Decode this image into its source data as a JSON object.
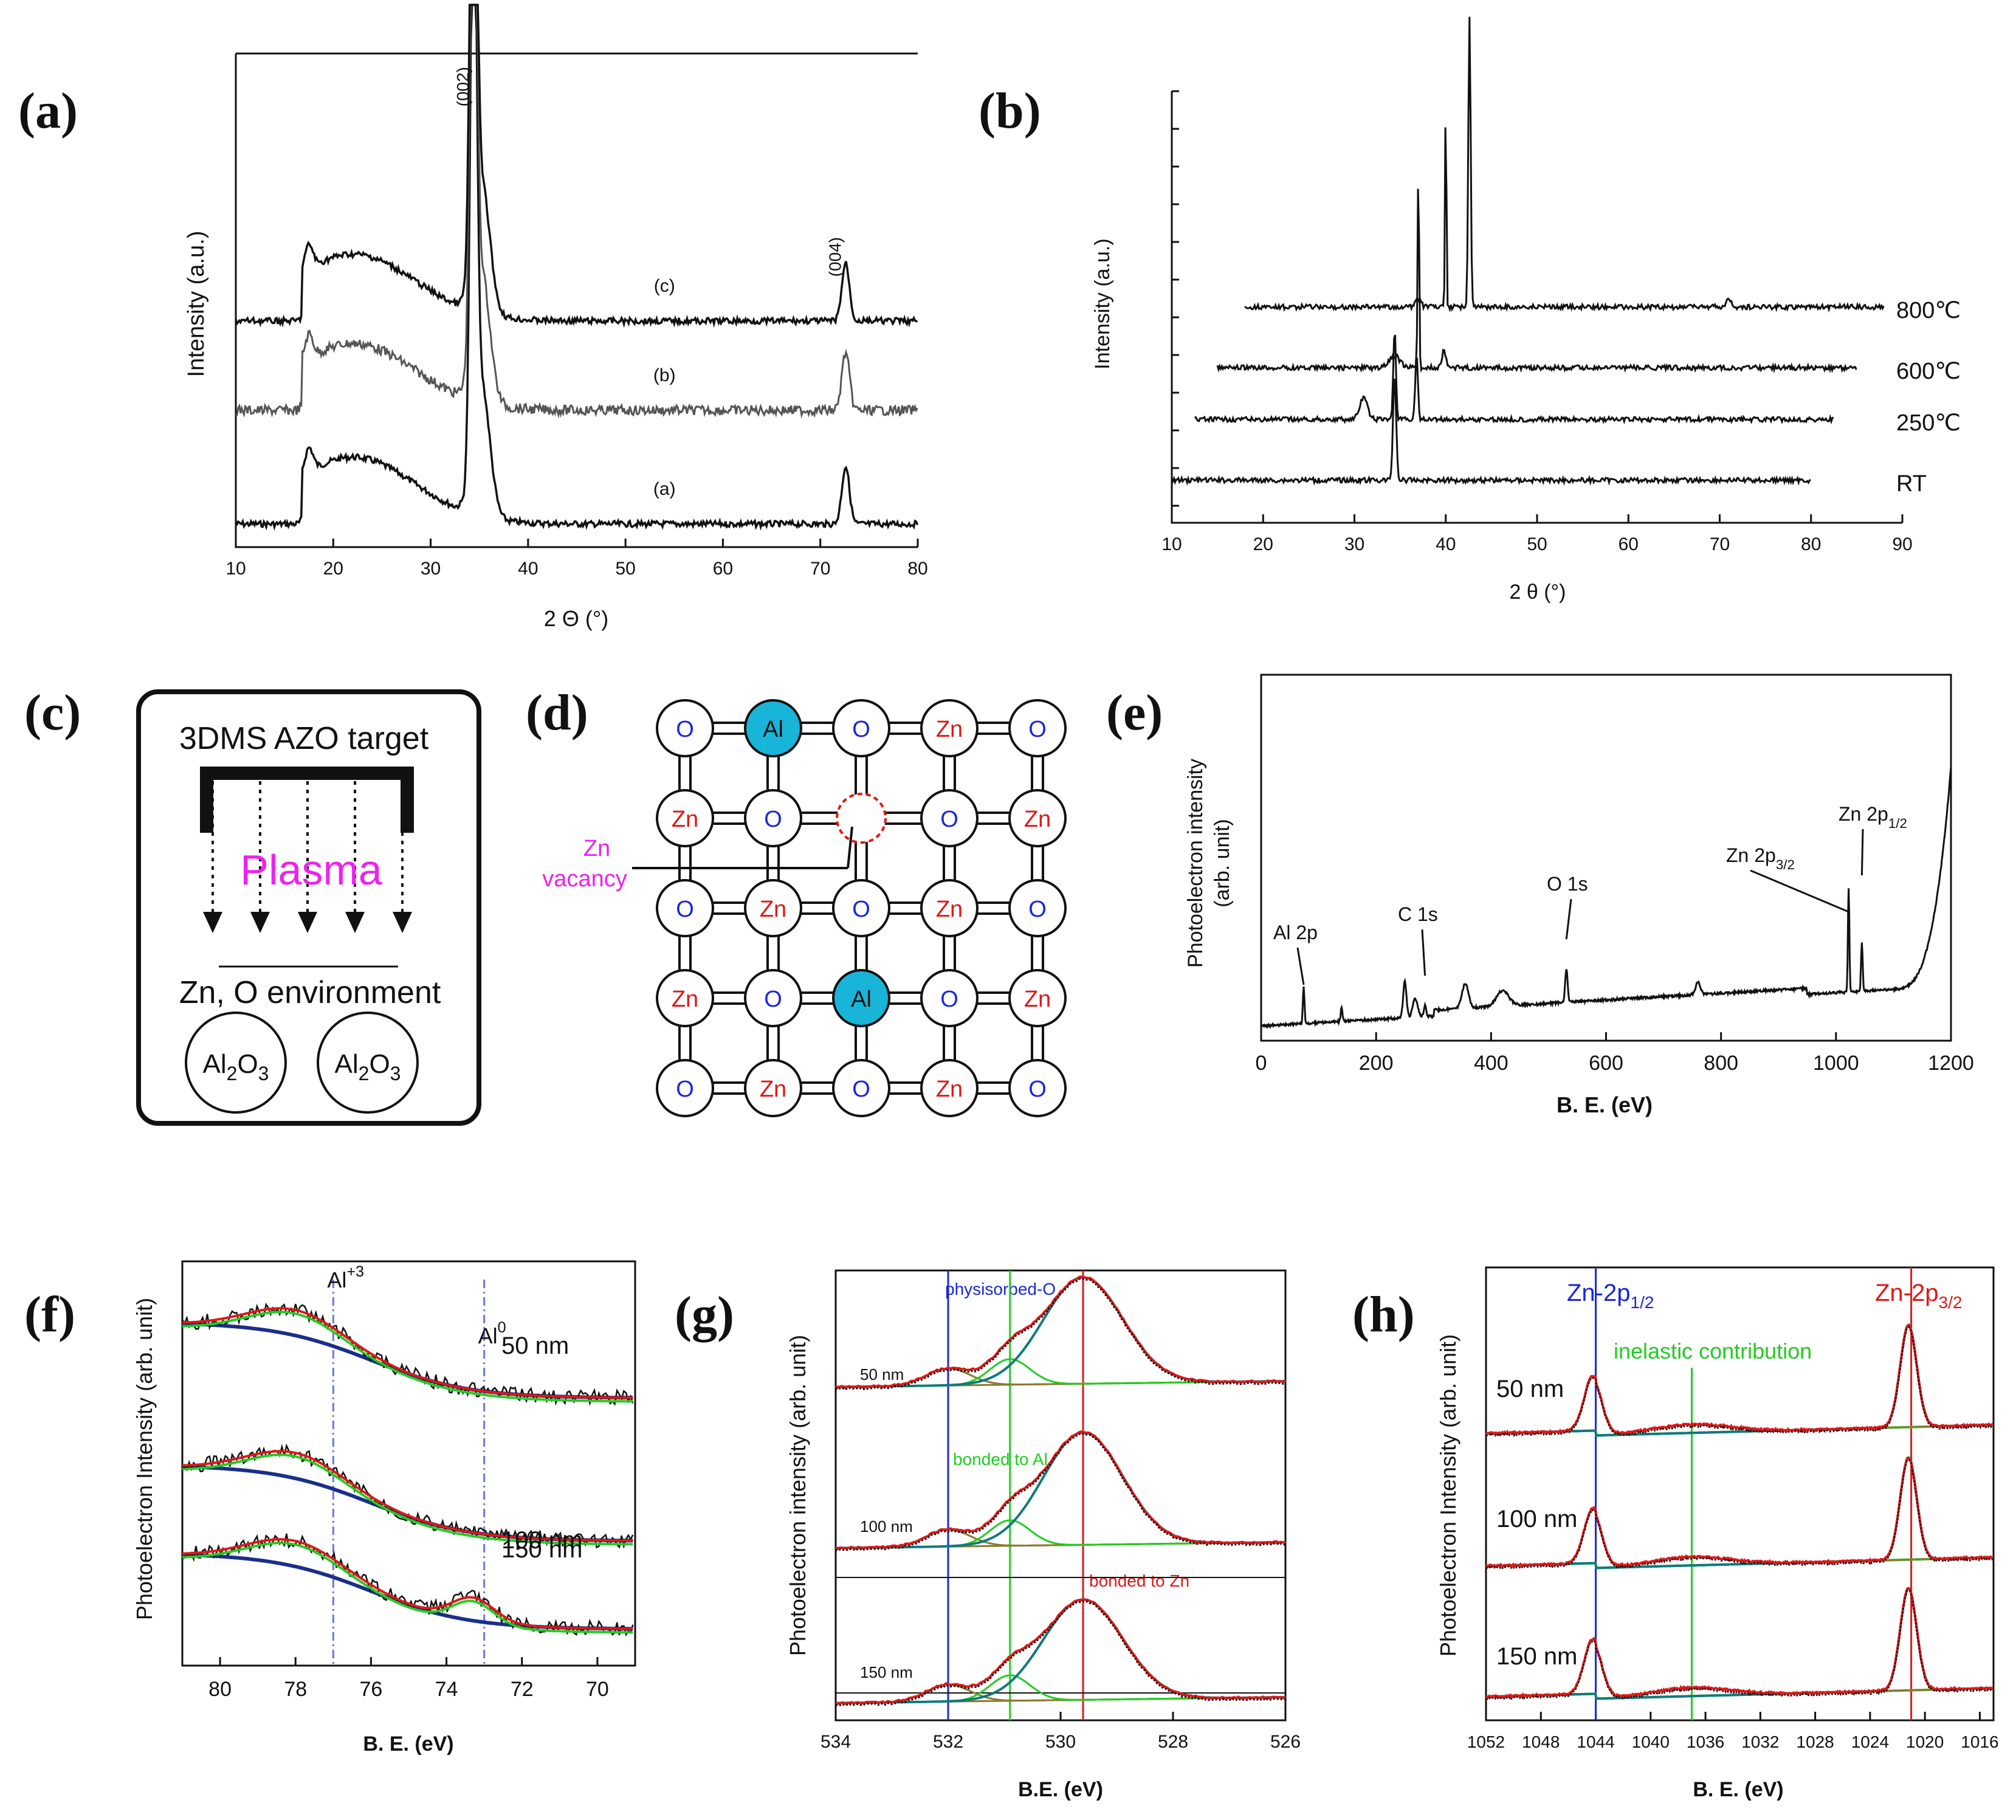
{
  "figure": {
    "panel_labels": [
      "(a)",
      "(b)",
      "(c)",
      "(d)",
      "(e)",
      "(f)",
      "(g)",
      "(h)"
    ]
  },
  "colors": {
    "ink": "#111111",
    "red": "#e01818",
    "blue": "#1a28d8",
    "green": "#22cc22",
    "teal": "#0f7a7a",
    "olive": "#8a7a30",
    "navy": "#1a2f8a",
    "magenta": "#ee22ee",
    "cyan": "#18b5d8"
  },
  "chart_data": [
    {
      "panel": "(a)",
      "type": "line",
      "xlabel": "2 Θ (°)",
      "ylabel": "Intensity (a.u.)",
      "xlim": [
        10,
        80
      ],
      "xticks": [
        10,
        20,
        30,
        40,
        50,
        60,
        70,
        80
      ],
      "series": [
        {
          "name": "(a)",
          "peaks": [
            34.4,
            72.6
          ]
        },
        {
          "name": "(b)",
          "peaks": [
            34.4,
            72.6
          ]
        },
        {
          "name": "(c)",
          "peaks": [
            34.4,
            72.6
          ]
        }
      ],
      "peak_labels": [
        {
          "text": "(002)",
          "x": 34.4
        },
        {
          "text": "(004)",
          "x": 72.6
        }
      ]
    },
    {
      "panel": "(b)",
      "type": "line",
      "xlabel": "2 θ (°)",
      "ylabel": "Intensity (a.u.)",
      "xlim": [
        10,
        90
      ],
      "xticks": [
        10,
        20,
        30,
        40,
        50,
        60,
        70,
        80,
        90
      ],
      "series": [
        {
          "name": "RT",
          "x_range": [
            10,
            80
          ],
          "peaks": [
            34.4
          ]
        },
        {
          "name": "250℃",
          "x_range": [
            12.5,
            82.5
          ],
          "peaks": [
            31,
            34.4,
            36.8
          ]
        },
        {
          "name": "600℃",
          "x_range": [
            15,
            85
          ],
          "peaks": [
            34.4,
            39.8
          ]
        },
        {
          "name": "800℃",
          "x_range": [
            18,
            88
          ],
          "peaks": [
            37,
            42.6,
            71
          ]
        }
      ]
    },
    {
      "panel": "(e)",
      "type": "line",
      "xlabel": "B. E. (eV)",
      "ylabel": "Photoelectron intensity (arb. unit)",
      "xlim": [
        0,
        1200
      ],
      "xticks": [
        0,
        200,
        400,
        600,
        800,
        1000,
        1200
      ],
      "annotations": [
        {
          "text": "Al 2p",
          "x": 74
        },
        {
          "text": "C 1s",
          "x": 285
        },
        {
          "text": "O 1s",
          "x": 531
        },
        {
          "text": "Zn 2p",
          "sub": "3/2",
          "x": 1022
        },
        {
          "text": "Zn 2p",
          "sub": "1/2",
          "x": 1045
        }
      ]
    },
    {
      "panel": "(f)",
      "type": "line",
      "xlabel": "B. E. (eV)",
      "ylabel": "Photoelectron Intensity (arb. unit)",
      "xlim": [
        81,
        69
      ],
      "xticks": [
        80,
        78,
        76,
        74,
        72,
        70
      ],
      "series": [
        {
          "name": "50 nm"
        },
        {
          "name": "100 nm"
        },
        {
          "name": "150 nm"
        }
      ],
      "reference_lines": [
        {
          "text": "Al",
          "sup": "+3",
          "x": 77
        },
        {
          "text": "Al",
          "sup": "0",
          "x": 73
        }
      ]
    },
    {
      "panel": "(g)",
      "type": "line",
      "xlabel": "B.E. (eV)",
      "ylabel": "Photoelectron intensity (arb. unit)",
      "xlim": [
        534,
        526
      ],
      "xticks": [
        534,
        532,
        530,
        528,
        526
      ],
      "series": [
        {
          "name": "50 nm"
        },
        {
          "name": "100 nm"
        },
        {
          "name": "150 nm"
        }
      ],
      "reference_lines": [
        {
          "text": "physisorbed-O",
          "x": 532
        },
        {
          "text": "bonded to Al",
          "x": 530.9
        },
        {
          "text": "bonded to Zn",
          "x": 529.6
        }
      ]
    },
    {
      "panel": "(h)",
      "type": "line",
      "xlabel": "B. E. (eV)",
      "ylabel": "Photoelectron Intensity (arb. unit)",
      "xlim": [
        1052,
        1015
      ],
      "xticks": [
        1052,
        1048,
        1044,
        1040,
        1036,
        1032,
        1028,
        1024,
        1020,
        1016
      ],
      "series": [
        {
          "name": "50 nm"
        },
        {
          "name": "100 nm"
        },
        {
          "name": "150 nm"
        }
      ],
      "reference_lines": [
        {
          "text": "Zn-2p",
          "sub": "1/2",
          "x": 1044
        },
        {
          "text": "inelastic contribution",
          "x": 1037
        },
        {
          "text": "Zn-2p",
          "sub": "3/2",
          "x": 1021
        }
      ]
    }
  ],
  "diagram_c": {
    "target": "3DMS AZO target",
    "plasma": "Plasma",
    "environment": "Zn, O environment",
    "particles": [
      {
        "pre": "Al",
        "sub1": "2",
        "mid": "O",
        "sub2": "3"
      },
      {
        "pre": "Al",
        "sub1": "2",
        "mid": "O",
        "sub2": "3"
      }
    ]
  },
  "diagram_d": {
    "grid": [
      [
        "O",
        "Al",
        "O",
        "Zn",
        "O"
      ],
      [
        "Zn",
        "O",
        "",
        "O",
        "Zn"
      ],
      [
        "O",
        "Zn",
        "O",
        "Zn",
        "O"
      ],
      [
        "Zn",
        "O",
        "Al",
        "O",
        "Zn"
      ],
      [
        "O",
        "Zn",
        "O",
        "Zn",
        "O"
      ]
    ],
    "vacancy_label": [
      "Zn",
      "vacancy"
    ]
  }
}
